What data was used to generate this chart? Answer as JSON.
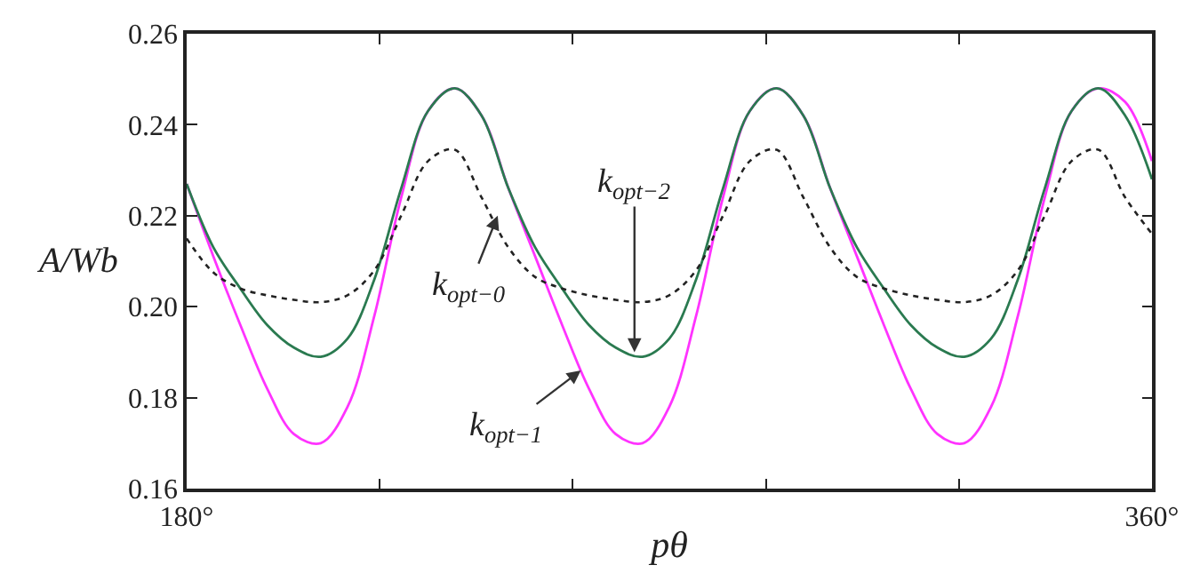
{
  "chart_data": {
    "type": "line",
    "xlabel": "pθ",
    "ylabel": "A/Wb",
    "x": [
      180,
      185,
      190,
      195,
      200,
      205,
      210,
      215,
      220,
      225,
      230,
      235,
      240,
      245,
      250,
      255,
      260,
      265,
      270,
      275,
      280,
      285,
      290,
      295,
      300,
      305,
      310,
      315,
      320,
      325,
      330,
      335,
      340,
      345,
      350,
      355,
      360
    ],
    "series": [
      {
        "color": "#ff33ff",
        "line_style": "solid",
        "values": [
          0.227,
          0.211,
          0.196,
          0.182,
          0.172,
          0.17,
          0.178,
          0.198,
          0.224,
          0.243,
          0.248,
          0.242,
          0.226,
          0.211,
          0.196,
          0.182,
          0.172,
          0.17,
          0.178,
          0.198,
          0.224,
          0.243,
          0.248,
          0.242,
          0.226,
          0.211,
          0.196,
          0.182,
          0.172,
          0.17,
          0.178,
          0.198,
          0.224,
          0.243,
          0.248,
          0.245,
          0.232
        ]
      },
      {
        "color": "#2a7a50",
        "line_style": "solid",
        "values": [
          0.227,
          0.213,
          0.204,
          0.196,
          0.191,
          0.189,
          0.193,
          0.206,
          0.226,
          0.243,
          0.248,
          0.242,
          0.226,
          0.213,
          0.204,
          0.196,
          0.191,
          0.189,
          0.193,
          0.206,
          0.226,
          0.243,
          0.248,
          0.242,
          0.226,
          0.213,
          0.204,
          0.196,
          0.191,
          0.189,
          0.193,
          0.206,
          0.226,
          0.243,
          0.248,
          0.242,
          0.228
        ]
      },
      {
        "color": "#222222",
        "line_style": "dotted",
        "values": [
          0.215,
          0.2075,
          0.204,
          0.2025,
          0.2015,
          0.201,
          0.2025,
          0.208,
          0.22,
          0.232,
          0.2345,
          0.224,
          0.213,
          0.2065,
          0.204,
          0.2025,
          0.2015,
          0.201,
          0.2025,
          0.208,
          0.22,
          0.232,
          0.2345,
          0.224,
          0.213,
          0.2065,
          0.204,
          0.2025,
          0.2015,
          0.201,
          0.2025,
          0.208,
          0.22,
          0.232,
          0.2345,
          0.224,
          0.216
        ]
      }
    ],
    "xlim": [
      180,
      360
    ],
    "xticks": [
      {
        "value": 180,
        "label": "180°"
      },
      {
        "value": 216,
        "label": null
      },
      {
        "value": 252,
        "label": null
      },
      {
        "value": 288,
        "label": null
      },
      {
        "value": 324,
        "label": null
      },
      {
        "value": 360,
        "label": "360°"
      }
    ],
    "ylim": [
      0.16,
      0.26
    ],
    "yticks": [
      {
        "value": 0.16,
        "label": "0.16"
      },
      {
        "value": 0.18,
        "label": "0.18"
      },
      {
        "value": 0.2,
        "label": "0.20"
      },
      {
        "value": 0.22,
        "label": "0.22"
      },
      {
        "value": 0.24,
        "label": "0.24"
      },
      {
        "value": 0.26,
        "label": "0.26"
      }
    ],
    "annotations": [
      {
        "text": "k$_{opt−0}$",
        "x": 238,
        "y": 0.22
      },
      {
        "text": "k$_{opt−1}$",
        "x": 253.5,
        "y": 0.186
      },
      {
        "text": "k$_{opt−2}$",
        "x": 263.5,
        "y": 0.19
      }
    ],
    "marker": "none"
  }
}
